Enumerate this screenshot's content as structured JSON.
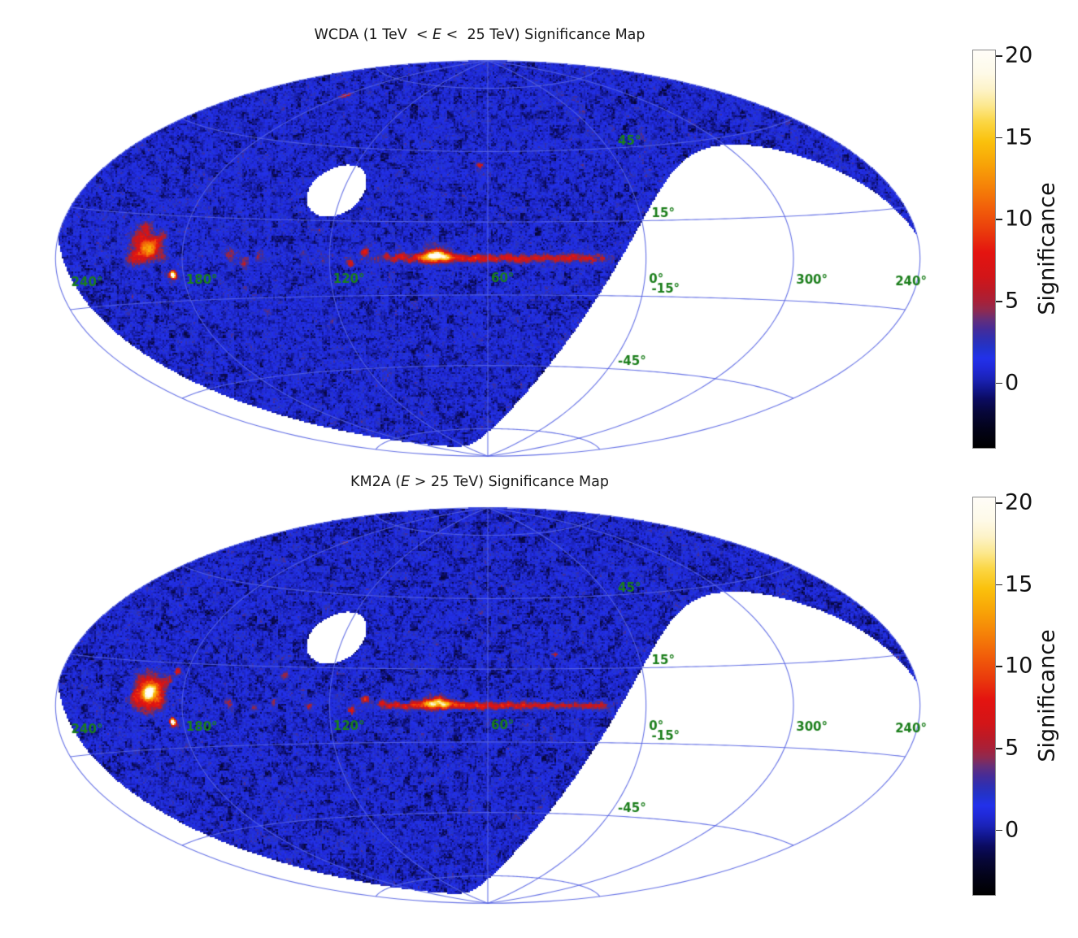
{
  "page": {
    "background": "#ffffff"
  },
  "panels": [
    {
      "title": {
        "pre": "WCDA (1 TeV  < ",
        "em": "E",
        "post": " <  25 TeV) Significance Map"
      },
      "colorbar": {
        "label": "Significance"
      }
    },
    {
      "title": {
        "pre": "KM2A (",
        "em": "E",
        "post": " > 25 TeV) Significance Map"
      },
      "colorbar": {
        "label": "Significance"
      }
    }
  ],
  "style": {
    "graticule_color": "#5563e2",
    "coord_label_color": "#1b7e1b",
    "title_color": "#1a1a1a"
  },
  "colormap_stops": [
    [
      -4.0,
      "#000000"
    ],
    [
      -2.8,
      "#03031a"
    ],
    [
      -1.8,
      "#07073a"
    ],
    [
      -1.0,
      "#0b0b60"
    ],
    [
      -0.4,
      "#11168c"
    ],
    [
      0.2,
      "#1a22b4"
    ],
    [
      0.9,
      "#2029d8"
    ],
    [
      1.5,
      "#2231ea"
    ],
    [
      2.1,
      "#2233cc"
    ],
    [
      2.7,
      "#2f2fb2"
    ],
    [
      3.3,
      "#462c98"
    ],
    [
      3.9,
      "#662e78"
    ],
    [
      4.4,
      "#8c2a52"
    ],
    [
      5.0,
      "#a82038"
    ],
    [
      5.7,
      "#bc1a26"
    ],
    [
      6.5,
      "#d21518"
    ],
    [
      8.0,
      "#e41410"
    ],
    [
      9.3,
      "#ea3b0c"
    ],
    [
      10.6,
      "#f15c0a"
    ],
    [
      12.0,
      "#f58108"
    ],
    [
      13.4,
      "#f8a307"
    ],
    [
      14.8,
      "#fac10c"
    ],
    [
      16.0,
      "#fbd643"
    ],
    [
      17.0,
      "#fce88e"
    ],
    [
      18.0,
      "#fdf3c8"
    ],
    [
      19.0,
      "#fefae8"
    ],
    [
      20.4,
      "#fffdf8"
    ]
  ],
  "chart_data": [
    {
      "type": "heatmap",
      "title": "WCDA (1 TeV < E < 25 TeV) Significance Map",
      "projection": "hammer",
      "coords": "galactic",
      "center_longitude_deg": 60,
      "colorbar": {
        "label": "Significance",
        "ticks": [
          20,
          15,
          10,
          5,
          0
        ],
        "vmin": -4,
        "vmax": 20.4
      },
      "visibility_mask": {
        "dec_min_deg": -20.6,
        "dec_max_deg": 79.4
      },
      "graticule": {
        "meridians_lam_deg": [
          -180,
          -120,
          -60,
          0,
          60,
          120,
          180
        ],
        "parallels_b_deg": [
          -75,
          -45,
          -15,
          15,
          45,
          75
        ],
        "lon_labels": [
          {
            "text": "240°",
            "lam": -174
          },
          {
            "text": "180°",
            "lam": -120
          },
          {
            "text": "120°",
            "lam": -60
          },
          {
            "text": "60°",
            "lam": 0
          },
          {
            "text": "0°",
            "lam": 60
          },
          {
            "text": "300°",
            "lam": 120
          },
          {
            "text": "240°",
            "lam": 166
          }
        ],
        "lat_labels": [
          {
            "text": "45°",
            "b": 45
          },
          {
            "text": "15°",
            "b": 15
          },
          {
            "text": "-15°",
            "b": -15
          },
          {
            "text": "-45°",
            "b": -45
          }
        ]
      },
      "noise": {
        "mean": 0.75,
        "sigma": 1.0,
        "coarse_sigma": 0.55
      },
      "ridge": {
        "amp": 2.0,
        "sigma_b_deg": 1.6,
        "l_core": [
          12,
          100
        ],
        "l_taper_end": 140,
        "outer_amp": 0.4
      },
      "sources": [
        [
          184.6,
          -5.8,
          26,
          0.9
        ],
        [
          195.1,
          4.3,
          7.5,
          2.4
        ],
        [
          197.8,
          1.8,
          6,
          2.6
        ],
        [
          192.3,
          3.2,
          5.5,
          2.2
        ],
        [
          200.8,
          6.8,
          4.5,
          2.6
        ],
        [
          198.5,
          10.3,
          4,
          2
        ],
        [
          190,
          7.5,
          3.6,
          2
        ],
        [
          203.2,
          0.3,
          3.8,
          2.2
        ],
        [
          188.5,
          0.5,
          3.2,
          1.8
        ],
        [
          160,
          1.5,
          3.4,
          1.8
        ],
        [
          154,
          -2.5,
          3,
          1.4
        ],
        [
          148,
          0.5,
          2.8,
          1.2
        ],
        [
          125,
          11,
          3.6,
          1
        ],
        [
          179.9,
          65,
          6.5,
          1
        ],
        [
          63.6,
          38.9,
          5.5,
          1
        ],
        [
          106.3,
          2.7,
          6.5,
          1.1
        ],
        [
          111.7,
          -2.1,
          6,
          1
        ],
        [
          80,
          1,
          3,
          4
        ],
        [
          98,
          1.2,
          4.5,
          1.1
        ],
        [
          95,
          -0.5,
          4,
          1
        ],
        [
          92,
          0.6,
          5,
          1.1
        ],
        [
          89,
          -0.8,
          4,
          1
        ],
        [
          86.5,
          0.8,
          5.5,
          1.1
        ],
        [
          84,
          0.2,
          6.5,
          1.2
        ],
        [
          81.8,
          1.2,
          9,
          1.3
        ],
        [
          79.9,
          0.7,
          12,
          1.3
        ],
        [
          78.1,
          1.9,
          10,
          1.2
        ],
        [
          76.3,
          0.3,
          11,
          1.25
        ],
        [
          74.5,
          0.9,
          7,
          1.1
        ],
        [
          72,
          0.5,
          6,
          1.05
        ],
        [
          69.5,
          0.2,
          5.5,
          1
        ],
        [
          67,
          -0.3,
          5,
          1
        ],
        [
          64.5,
          0.4,
          5.5,
          1
        ],
        [
          62,
          -0.4,
          5,
          1
        ],
        [
          59.5,
          0.2,
          5,
          1
        ],
        [
          57,
          -0.6,
          4.6,
          1
        ],
        [
          54.5,
          0.3,
          5,
          1
        ],
        [
          52,
          0.6,
          4.4,
          1
        ],
        [
          49.5,
          -0.4,
          4.8,
          1
        ],
        [
          47,
          0.1,
          4.2,
          1
        ],
        [
          44.5,
          -0.5,
          4.4,
          1
        ],
        [
          42,
          0.4,
          4.2,
          1
        ],
        [
          39.5,
          -0.2,
          4.4,
          1
        ],
        [
          37,
          0.5,
          4,
          1
        ],
        [
          34.5,
          -0.4,
          4,
          1
        ],
        [
          32,
          0.2,
          3.8,
          1
        ],
        [
          29.5,
          -0.2,
          3.8,
          1
        ],
        [
          27,
          0.4,
          3.6,
          1
        ],
        [
          24.5,
          -0.3,
          3.4,
          1
        ],
        [
          22,
          0.2,
          3.2,
          1
        ],
        [
          19.5,
          -0.4,
          3,
          1
        ],
        [
          17,
          0.1,
          2.8,
          1
        ]
      ]
    },
    {
      "type": "heatmap",
      "title": "KM2A (E > 25 TeV) Significance Map",
      "projection": "hammer",
      "coords": "galactic",
      "center_longitude_deg": 60,
      "colorbar": {
        "label": "Significance",
        "ticks": [
          20,
          15,
          10,
          5,
          0
        ],
        "vmin": -4,
        "vmax": 20.4
      },
      "visibility_mask": {
        "dec_min_deg": -20.6,
        "dec_max_deg": 79.4
      },
      "graticule": {
        "meridians_lam_deg": [
          -180,
          -120,
          -60,
          0,
          60,
          120,
          180
        ],
        "parallels_b_deg": [
          -75,
          -45,
          -15,
          15,
          45,
          75
        ],
        "lon_labels": [
          {
            "text": "240°",
            "lam": -174
          },
          {
            "text": "180°",
            "lam": -120
          },
          {
            "text": "120°",
            "lam": -60
          },
          {
            "text": "60°",
            "lam": 0
          },
          {
            "text": "0°",
            "lam": 60
          },
          {
            "text": "300°",
            "lam": 120
          },
          {
            "text": "240°",
            "lam": 166
          }
        ],
        "lat_labels": [
          {
            "text": "45°",
            "b": 45
          },
          {
            "text": "15°",
            "b": 15
          },
          {
            "text": "-15°",
            "b": -15
          },
          {
            "text": "-45°",
            "b": -45
          }
        ]
      },
      "noise": {
        "mean": 0.68,
        "sigma": 1.0,
        "coarse_sigma": 0.55
      },
      "ridge": {
        "amp": 1.6,
        "sigma_b_deg": 1.5,
        "l_core": [
          12,
          100
        ],
        "l_taper_end": 140,
        "outer_amp": 0.35
      },
      "sources": [
        [
          184.6,
          -5.8,
          28,
          0.8
        ],
        [
          184.6,
          12,
          6,
          0.9
        ],
        [
          195.1,
          4.3,
          16,
          1.7
        ],
        [
          195,
          4,
          6.5,
          4.5
        ],
        [
          192,
          6,
          5.5,
          2.2
        ],
        [
          198.9,
          8.2,
          4.5,
          2
        ],
        [
          200.5,
          2.5,
          4.5,
          2
        ],
        [
          190.5,
          1.5,
          4,
          1.8
        ],
        [
          187.5,
          8.5,
          3.5,
          1.5
        ],
        [
          160.3,
          1.3,
          4.6,
          1
        ],
        [
          150,
          -1,
          3.6,
          1
        ],
        [
          139,
          11.5,
          5,
          0.9
        ],
        [
          142,
          1.5,
          4,
          0.9
        ],
        [
          128,
          -0.5,
          3.5,
          0.9
        ],
        [
          106.3,
          2.7,
          7.5,
          1
        ],
        [
          111.7,
          -2.1,
          7,
          0.95
        ],
        [
          179.9,
          65,
          3.2,
          0.9
        ],
        [
          63.6,
          38.9,
          3,
          0.9
        ],
        [
          33.3,
          21,
          5,
          0.8
        ],
        [
          80,
          0.8,
          3,
          3.5
        ],
        [
          100,
          0.8,
          5,
          1
        ],
        [
          97,
          -0.3,
          4.6,
          0.95
        ],
        [
          94,
          0.5,
          5.5,
          1
        ],
        [
          91,
          -0.6,
          5,
          0.95
        ],
        [
          88,
          0.6,
          6,
          1
        ],
        [
          85.5,
          0.1,
          7,
          1.05
        ],
        [
          83,
          1,
          9,
          1.1
        ],
        [
          80.5,
          0.6,
          13,
          1.15
        ],
        [
          78.4,
          1.8,
          11,
          1.1
        ],
        [
          76.4,
          0.2,
          13,
          1.15
        ],
        [
          74.3,
          0.8,
          8,
          1
        ],
        [
          71.8,
          0.4,
          7,
          1
        ],
        [
          69.3,
          0.1,
          6.5,
          0.95
        ],
        [
          66.8,
          -0.3,
          6,
          0.95
        ],
        [
          64.3,
          0.3,
          6.5,
          0.95
        ],
        [
          61.8,
          -0.4,
          6,
          0.95
        ],
        [
          59.3,
          0.2,
          6,
          0.95
        ],
        [
          56.8,
          -0.5,
          5.5,
          0.9
        ],
        [
          54.3,
          0.2,
          6,
          0.95
        ],
        [
          51.8,
          0.5,
          5.2,
          0.9
        ],
        [
          49.3,
          -0.4,
          5.6,
          0.9
        ],
        [
          46.8,
          0.1,
          5,
          0.9
        ],
        [
          44.3,
          -0.5,
          5.2,
          0.9
        ],
        [
          41.8,
          0.3,
          5,
          0.9
        ],
        [
          39.3,
          -0.2,
          5.2,
          0.9
        ],
        [
          36.8,
          0.4,
          4.8,
          0.9
        ],
        [
          34.3,
          -0.4,
          4.8,
          0.9
        ],
        [
          31.8,
          0.2,
          4.6,
          0.9
        ],
        [
          29.3,
          -0.2,
          4.6,
          0.9
        ],
        [
          26.8,
          0.3,
          4.4,
          0.9
        ],
        [
          24.3,
          -0.3,
          4.2,
          0.9
        ],
        [
          21.8,
          0.2,
          4,
          0.9
        ],
        [
          19.3,
          -0.4,
          3.8,
          0.9
        ],
        [
          16.8,
          0.1,
          3.6,
          0.9
        ]
      ]
    }
  ]
}
